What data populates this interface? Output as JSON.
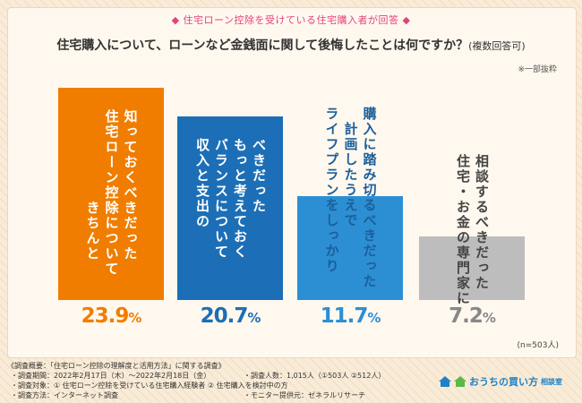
{
  "banner": "◆ 住宅ローン控除を受けている住宅購入者が回答 ◆",
  "question": "住宅購入について、ローンなど金銭面に関して後悔したことは何ですか？",
  "question_note": "(複数回答可)",
  "excerpt_note": "※一部抜粋",
  "sample_size": "(n=503人)",
  "chart_data": {
    "type": "bar",
    "title": "住宅購入について、ローンなど金銭面に関して後悔したことは何ですか？(複数回答可)",
    "unit": "%",
    "ylim": [
      0,
      25
    ],
    "categories": [
      "住宅ローン控除について\nきちんと知っておくべきだった",
      "収入と支出のバランスについて\nもっと考えておくべきだった",
      "ライフプランをしっかり計画したうえで\n購入に踏み切るべきだった",
      "住宅・お金の専門家に\n相談するべきだった"
    ],
    "values": [
      23.9,
      20.7,
      11.7,
      7.2
    ],
    "colors": [
      "#f07d00",
      "#1c6fb6",
      "#2c8fd4",
      "#bdbdbd"
    ],
    "label_colors": [
      "#ffffff",
      "#ffffff",
      "#ffffff",
      "#444444"
    ],
    "display_labels": [
      "知っておくべきだった\n住宅ローン控除について\n　　　　　　きちんと",
      "べきだった\nもっと考えておく\nバランスについて\n収入と支出の",
      "購入に踏み切るべきだった\n　計画したうえで\nライフプランをしっかり",
      "相談するべきだった\n住宅・お金の専門家に"
    ],
    "value_labels": [
      "23.9",
      "20.7",
      "11.7",
      "7.2"
    ],
    "value_label_colors": [
      "#f07d00",
      "#1c6fb6",
      "#2c8fd4",
      "#888888"
    ],
    "percent_symbol": "%"
  },
  "footer": {
    "survey_title": "《調査概要：「住宅ローン控除の理解度と活用方法」に関する調査》",
    "period": "・調査期間：2022年2月17日（木）～2022年2月18日（金）",
    "target": "・調査対象：① 住宅ローン控除を受けている住宅購入経験者 ② 住宅購入を検討中の方",
    "method": "・調査方法：インターネット調査",
    "count": "・調査人数：1,015人（①503人 ②512人）",
    "provider": "・モニター提供元：ゼネラルリサーチ"
  },
  "logo": {
    "name": "おうちの買い方",
    "sub": "相談室"
  }
}
